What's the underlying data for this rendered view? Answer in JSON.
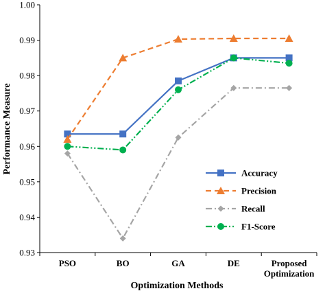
{
  "chart_data": {
    "type": "line",
    "title": "",
    "xlabel": "Optimization Methods",
    "ylabel": "Performance Measure",
    "categories": [
      "PSO",
      "BO",
      "GA",
      "DE",
      "Proposed Optimization"
    ],
    "ylim": [
      0.93,
      1.0
    ],
    "yticks": [
      "0.93",
      "0.94",
      "0.95",
      "0.96",
      "0.97",
      "0.98",
      "0.99",
      "1.00"
    ],
    "grid": false,
    "legend_position": "bottom-right",
    "series": [
      {
        "name": "Accuracy",
        "color": "#4472C4",
        "marker": "square",
        "dash": "solid",
        "values": [
          0.9635,
          0.9635,
          0.9785,
          0.985,
          0.985
        ]
      },
      {
        "name": "Precision",
        "color": "#ED7D31",
        "marker": "triangle",
        "dash": "dashed",
        "values": [
          0.962,
          0.985,
          0.9903,
          0.9905,
          0.9905
        ]
      },
      {
        "name": "Recall",
        "color": "#A5A5A5",
        "marker": "diamond",
        "dash": "dash-dot",
        "values": [
          0.958,
          0.934,
          0.9625,
          0.9765,
          0.9765
        ]
      },
      {
        "name": "F1-Score",
        "color": "#00B050",
        "marker": "circle",
        "dash": "dash-dot-dot",
        "values": [
          0.96,
          0.959,
          0.976,
          0.985,
          0.9835
        ]
      }
    ]
  }
}
